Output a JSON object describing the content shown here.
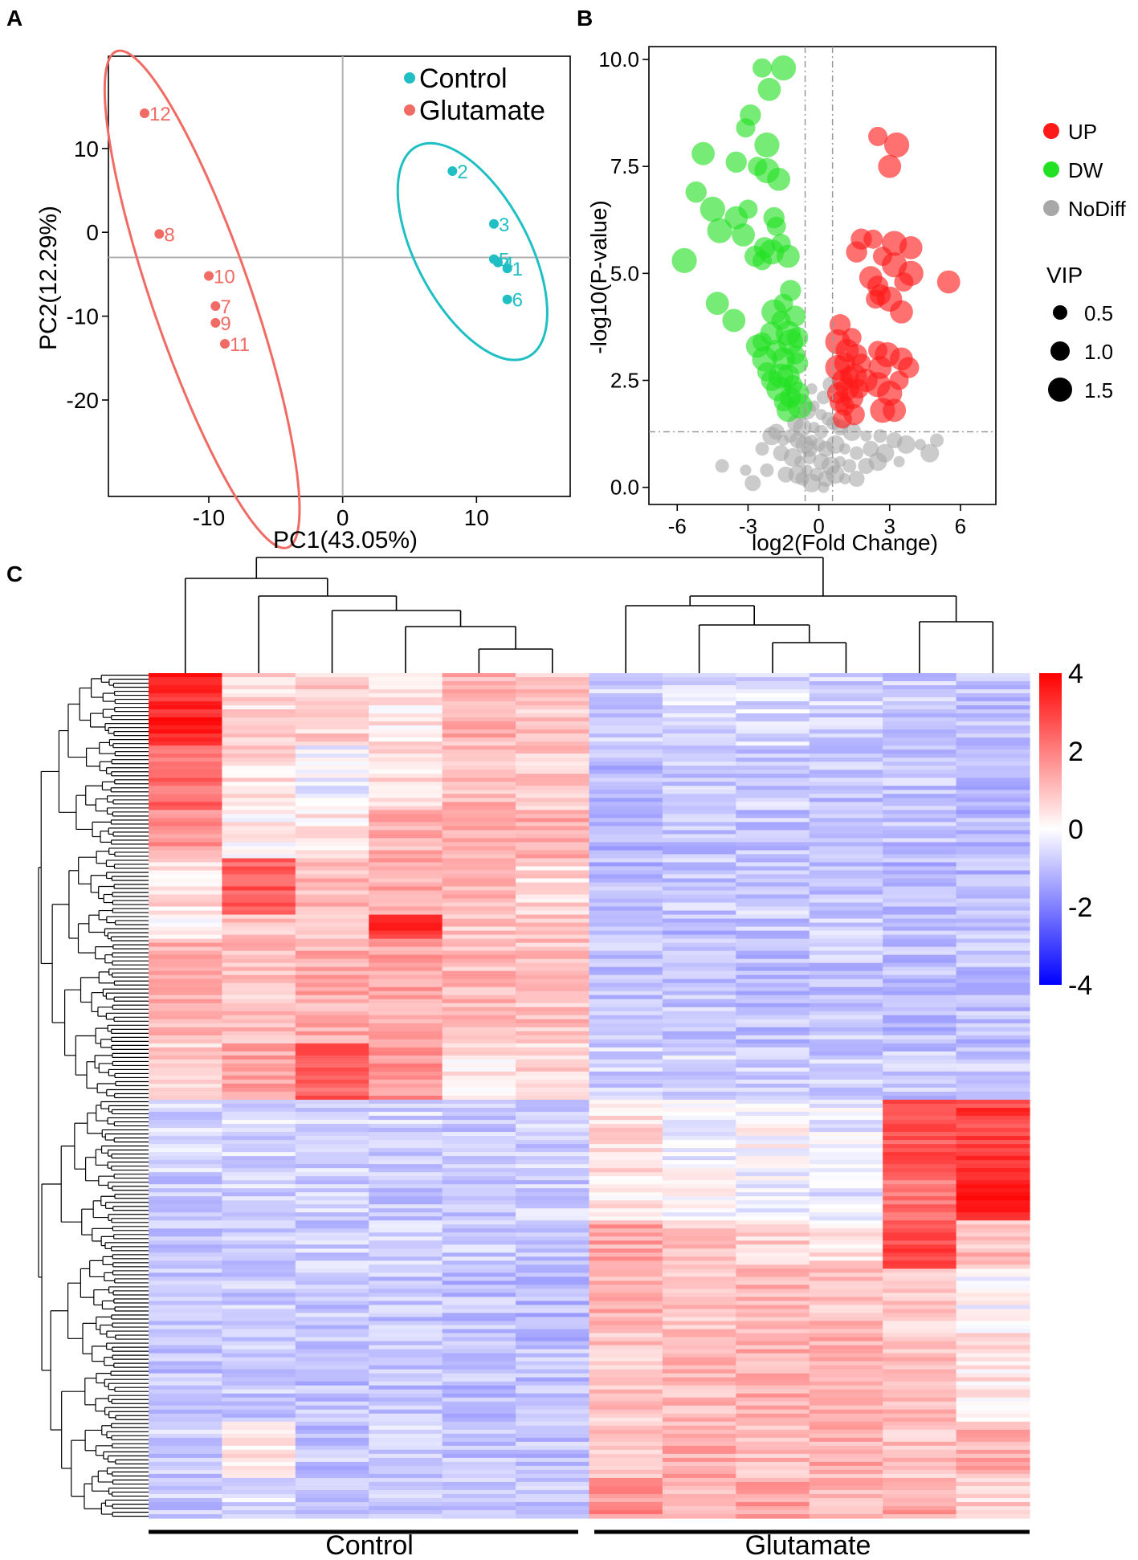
{
  "panels": {
    "a": "A",
    "b": "B",
    "c": "C"
  },
  "colors": {
    "control": "#1fbfc3",
    "glutamate": "#f06b64",
    "up": "#ff1a1a",
    "dw": "#22e022",
    "nodiff": "#a8a8a8",
    "heat_low": "#0000ff",
    "heat_mid": "#ffffff",
    "heat_high": "#ff0000"
  },
  "chart_data": [
    {
      "type": "scatter",
      "subtype": "pca",
      "title": "",
      "xlabel": "PC1(43.05%)",
      "ylabel": "PC2(12.29%)",
      "xlim": [
        -17.5,
        17
      ],
      "ylim": [
        -31.5,
        21
      ],
      "xticks": [
        -10,
        0,
        10
      ],
      "yticks": [
        10,
        0,
        -10,
        -20
      ],
      "reference_lines": {
        "x": 0,
        "y": -3
      },
      "legend_position": "top-right",
      "series": [
        {
          "name": "Control",
          "color_key": "control",
          "points": [
            {
              "label": "1",
              "x": 12.3,
              "y": -4.3
            },
            {
              "label": "2",
              "x": 8.2,
              "y": 7.3
            },
            {
              "label": "3",
              "x": 11.3,
              "y": 1.0
            },
            {
              "label": "4",
              "x": 11.6,
              "y": -3.6
            },
            {
              "label": "5",
              "x": 11.3,
              "y": -3.2
            },
            {
              "label": "6",
              "x": 12.3,
              "y": -8.0
            }
          ],
          "ellipse": {
            "cx": 9.7,
            "cy": -2.3,
            "rx": 4.2,
            "ry": 14.2,
            "rotate": -28
          }
        },
        {
          "name": "Glutamate",
          "color_key": "glutamate",
          "points": [
            {
              "label": "7",
              "x": -9.5,
              "y": -8.8
            },
            {
              "label": "8",
              "x": -13.7,
              "y": -0.2
            },
            {
              "label": "9",
              "x": -9.5,
              "y": -10.8
            },
            {
              "label": "10",
              "x": -10.0,
              "y": -5.2
            },
            {
              "label": "11",
              "x": -8.8,
              "y": -13.3
            },
            {
              "label": "12",
              "x": -14.8,
              "y": 14.2
            }
          ],
          "ellipse": {
            "cx": -10.5,
            "cy": -8.0,
            "rx": 3.7,
            "ry": 31.3,
            "rotate": -19
          }
        }
      ]
    },
    {
      "type": "scatter",
      "subtype": "volcano",
      "title": "",
      "xlabel": "log2(Fold Change)",
      "ylabel": "-log10(P-value)",
      "xlim": [
        -7.2,
        7.5
      ],
      "ylim": [
        -0.4,
        10.3
      ],
      "xticks": [
        -6,
        -3,
        0,
        3,
        6
      ],
      "yticks": [
        0.0,
        2.5,
        5.0,
        7.5,
        10.0
      ],
      "threshold_lines": {
        "x": [
          -0.58,
          0.58
        ],
        "y": 1.3
      },
      "legend": [
        {
          "label": "UP",
          "color_key": "up"
        },
        {
          "label": "DW",
          "color_key": "dw"
        },
        {
          "label": "NoDiff",
          "color_key": "nodiff"
        }
      ],
      "size_legend": {
        "title": "VIP",
        "values": [
          "0.5",
          "1.0",
          "1.5"
        ]
      },
      "series": [
        {
          "name": "DW",
          "color_key": "dw",
          "points": [
            [
              -2.4,
              9.8
            ],
            [
              -1.5,
              9.8
            ],
            [
              -2.1,
              9.3
            ],
            [
              -2.9,
              8.7
            ],
            [
              -3.1,
              8.4
            ],
            [
              -2.2,
              8.0
            ],
            [
              -4.9,
              7.8
            ],
            [
              -3.5,
              7.6
            ],
            [
              -2.6,
              7.5
            ],
            [
              -2.2,
              7.4
            ],
            [
              -1.7,
              7.2
            ],
            [
              -5.2,
              6.9
            ],
            [
              -3.0,
              6.5
            ],
            [
              -4.5,
              6.5
            ],
            [
              -3.5,
              6.3
            ],
            [
              -1.9,
              6.3
            ],
            [
              -1.8,
              6.1
            ],
            [
              -4.2,
              6.0
            ],
            [
              -3.2,
              5.9
            ],
            [
              -2.3,
              5.6
            ],
            [
              -1.6,
              5.7
            ],
            [
              -2.0,
              5.5
            ],
            [
              -1.3,
              5.4
            ],
            [
              -2.7,
              5.4
            ],
            [
              -2.4,
              5.3
            ],
            [
              -5.7,
              5.3
            ],
            [
              -4.3,
              4.3
            ],
            [
              -1.2,
              4.6
            ],
            [
              -1.5,
              4.3
            ],
            [
              -1.9,
              4.1
            ],
            [
              -3.6,
              3.9
            ],
            [
              -1.0,
              4.0
            ],
            [
              -1.6,
              3.9
            ],
            [
              -1.3,
              3.6
            ],
            [
              -2.0,
              3.6
            ],
            [
              -0.9,
              3.5
            ],
            [
              -2.4,
              3.4
            ],
            [
              -1.2,
              3.4
            ],
            [
              -2.6,
              3.3
            ],
            [
              -1.8,
              3.2
            ],
            [
              -1.0,
              3.1
            ],
            [
              -2.3,
              3.0
            ],
            [
              -1.5,
              3.0
            ],
            [
              -0.9,
              2.9
            ],
            [
              -2.2,
              2.7
            ],
            [
              -1.6,
              2.6
            ],
            [
              -1.3,
              2.6
            ],
            [
              -2.0,
              2.5
            ],
            [
              -1.1,
              2.4
            ],
            [
              -1.7,
              2.3
            ],
            [
              -0.9,
              2.2
            ],
            [
              -1.2,
              2.1
            ],
            [
              -1.5,
              2.0
            ],
            [
              -0.8,
              1.9
            ],
            [
              -1.3,
              1.8
            ]
          ]
        },
        {
          "name": "UP",
          "color_key": "up",
          "points": [
            [
              2.5,
              8.2
            ],
            [
              3.3,
              8.0
            ],
            [
              3.0,
              7.5
            ],
            [
              1.8,
              5.8
            ],
            [
              2.3,
              5.8
            ],
            [
              3.2,
              5.7
            ],
            [
              3.9,
              5.6
            ],
            [
              1.6,
              5.5
            ],
            [
              2.7,
              5.4
            ],
            [
              3.2,
              5.2
            ],
            [
              2.2,
              4.9
            ],
            [
              2.5,
              4.7
            ],
            [
              3.6,
              4.8
            ],
            [
              3.9,
              5.0
            ],
            [
              5.5,
              4.8
            ],
            [
              2.6,
              4.5
            ],
            [
              2.4,
              4.4
            ],
            [
              3.0,
              4.4
            ],
            [
              3.5,
              4.1
            ],
            [
              0.9,
              3.8
            ],
            [
              1.4,
              3.5
            ],
            [
              0.8,
              3.4
            ],
            [
              1.2,
              3.2
            ],
            [
              1.6,
              3.1
            ],
            [
              2.5,
              3.2
            ],
            [
              2.9,
              3.1
            ],
            [
              3.5,
              3.0
            ],
            [
              1.1,
              2.9
            ],
            [
              1.8,
              2.9
            ],
            [
              0.8,
              2.8
            ],
            [
              2.6,
              2.8
            ],
            [
              3.8,
              2.8
            ],
            [
              1.3,
              2.6
            ],
            [
              1.5,
              2.6
            ],
            [
              2.0,
              2.5
            ],
            [
              1.0,
              2.5
            ],
            [
              3.4,
              2.5
            ],
            [
              2.5,
              2.4
            ],
            [
              1.2,
              2.3
            ],
            [
              0.8,
              2.2
            ],
            [
              1.7,
              2.3
            ],
            [
              3.0,
              2.2
            ],
            [
              1.4,
              2.1
            ],
            [
              0.9,
              2.0
            ],
            [
              1.1,
              1.9
            ],
            [
              2.7,
              1.8
            ],
            [
              3.2,
              1.8
            ],
            [
              1.5,
              1.7
            ],
            [
              1.0,
              1.6
            ]
          ]
        },
        {
          "name": "NoDiff",
          "color_key": "nodiff",
          "points": [
            [
              -0.3,
              2.3
            ],
            [
              0.2,
              2.1
            ],
            [
              0.5,
              2.4
            ],
            [
              -0.5,
              1.8
            ],
            [
              0.1,
              1.7
            ],
            [
              0.4,
              1.6
            ],
            [
              -1.0,
              1.5
            ],
            [
              -0.7,
              1.4
            ],
            [
              -0.2,
              1.4
            ],
            [
              0.6,
              1.5
            ],
            [
              0.9,
              1.4
            ],
            [
              1.4,
              1.3
            ],
            [
              2.0,
              1.2
            ],
            [
              2.6,
              1.2
            ],
            [
              3.2,
              1.1
            ],
            [
              3.7,
              1.0
            ],
            [
              4.3,
              1.0
            ],
            [
              5.0,
              1.1
            ],
            [
              -1.8,
              1.3
            ],
            [
              -2.0,
              1.2
            ],
            [
              -1.5,
              1.1
            ],
            [
              -1.2,
              1.2
            ],
            [
              -0.9,
              1.1
            ],
            [
              -0.6,
              1.0
            ],
            [
              -0.3,
              1.1
            ],
            [
              0.0,
              1.0
            ],
            [
              0.3,
              0.9
            ],
            [
              0.7,
              1.0
            ],
            [
              1.1,
              0.9
            ],
            [
              1.6,
              0.8
            ],
            [
              2.2,
              0.9
            ],
            [
              2.8,
              0.8
            ],
            [
              3.4,
              0.6
            ],
            [
              -2.4,
              0.9
            ],
            [
              -1.6,
              0.8
            ],
            [
              -1.1,
              0.7
            ],
            [
              -0.8,
              0.6
            ],
            [
              -0.4,
              0.7
            ],
            [
              0.1,
              0.6
            ],
            [
              0.5,
              0.5
            ],
            [
              0.9,
              0.6
            ],
            [
              1.3,
              0.5
            ],
            [
              2.0,
              0.5
            ],
            [
              2.5,
              0.6
            ],
            [
              -3.1,
              0.4
            ],
            [
              -2.2,
              0.4
            ],
            [
              -1.4,
              0.3
            ],
            [
              -0.9,
              0.3
            ],
            [
              -0.5,
              0.4
            ],
            [
              -0.1,
              0.3
            ],
            [
              0.3,
              0.2
            ],
            [
              0.7,
              0.3
            ],
            [
              1.1,
              0.2
            ],
            [
              -4.1,
              0.5
            ],
            [
              -2.8,
              0.1
            ],
            [
              -0.3,
              0.1
            ],
            [
              0.2,
              0.0
            ],
            [
              -0.7,
              0.2
            ],
            [
              1.6,
              0.2
            ],
            [
              4.7,
              0.8
            ],
            [
              -0.2,
              1.9
            ],
            [
              0.1,
              1.3
            ],
            [
              -0.4,
              0.9
            ]
          ]
        }
      ]
    },
    {
      "type": "heatmap",
      "title": "",
      "color_scale": {
        "min": -4,
        "max": 4,
        "ticks": [
          "4",
          "2",
          "0",
          "-2",
          "-4"
        ]
      },
      "groups": [
        {
          "label": "Control",
          "columns": 6
        },
        {
          "label": "Glutamate",
          "columns": 6
        }
      ],
      "columns": 12,
      "row_blocks": [
        {
          "rows": 18,
          "values": [
            3.4,
            0.6,
            0.8,
            0.4,
            1.2,
            0.9,
            -0.7,
            -0.6,
            -0.5,
            -0.7,
            -0.9,
            -1.0
          ]
        },
        {
          "rows": 16,
          "values": [
            2.3,
            0.6,
            -0.2,
            0.5,
            1.1,
            0.8,
            -1.0,
            -0.8,
            -0.8,
            -0.9,
            -0.9,
            -1.1
          ]
        },
        {
          "rows": 12,
          "values": [
            1.6,
            0.2,
            0.3,
            1.2,
            1.3,
            1.4,
            -1.1,
            -1.0,
            -0.9,
            -0.8,
            -1.0,
            -1.1
          ]
        },
        {
          "rows": 14,
          "values": [
            0.5,
            2.6,
            1.1,
            1.4,
            1.2,
            0.6,
            -1.1,
            -0.9,
            -0.8,
            -0.9,
            -1.1,
            -1.1
          ]
        },
        {
          "rows": 6,
          "values": [
            0.3,
            1.0,
            0.7,
            3.2,
            0.9,
            0.8,
            -1.0,
            -1.0,
            -0.9,
            -0.7,
            -0.9,
            -1.0
          ]
        },
        {
          "rows": 26,
          "values": [
            1.2,
            1.0,
            1.3,
            1.4,
            1.1,
            1.0,
            -1.0,
            -0.9,
            -1.0,
            -0.9,
            -1.0,
            -1.0
          ]
        },
        {
          "rows": 14,
          "values": [
            0.8,
            1.4,
            2.5,
            1.7,
            0.4,
            0.6,
            -0.7,
            -0.6,
            -0.7,
            -0.8,
            -0.9,
            -0.9
          ]
        },
        {
          "rows": 18,
          "values": [
            -0.7,
            -0.6,
            -0.7,
            -0.7,
            -0.8,
            -0.8,
            0.6,
            -0.2,
            0.0,
            -0.3,
            2.6,
            3.0
          ]
        },
        {
          "rows": 12,
          "values": [
            -0.8,
            -0.7,
            -0.8,
            -0.8,
            -0.9,
            -0.8,
            0.4,
            0.0,
            -0.2,
            -0.4,
            2.2,
            3.5
          ]
        },
        {
          "rows": 12,
          "values": [
            -0.8,
            -0.7,
            -0.8,
            -0.8,
            -0.8,
            -0.9,
            1.4,
            0.9,
            0.8,
            0.5,
            2.8,
            1.0
          ]
        },
        {
          "rows": 16,
          "values": [
            -1.0,
            -0.8,
            -0.9,
            -0.9,
            -1.0,
            -1.1,
            1.3,
            1.0,
            1.2,
            1.0,
            0.7,
            -0.1
          ]
        },
        {
          "rows": 22,
          "values": [
            -0.9,
            -0.8,
            -1.0,
            -0.9,
            -1.0,
            -1.0,
            0.9,
            1.1,
            1.3,
            1.2,
            1.1,
            0.4
          ]
        },
        {
          "rows": 14,
          "values": [
            -0.8,
            0.3,
            -0.9,
            -0.8,
            -0.9,
            -0.9,
            0.9,
            1.3,
            1.1,
            1.3,
            1.0,
            1.3
          ]
        },
        {
          "rows": 10,
          "values": [
            -0.9,
            -0.6,
            -1.1,
            -0.9,
            -0.9,
            -0.8,
            1.7,
            1.0,
            1.5,
            1.2,
            1.4,
            0.7
          ]
        }
      ],
      "column_dendrogram": "Control: 1 | (2 | (3 | (4 | (5,6)))) ; Glutamate: (7 | (8 | (9,10))) | (11,12)",
      "row_dendrogram": "two main clusters: Control-high rows (top) and Glutamate-high rows (bottom)"
    }
  ]
}
